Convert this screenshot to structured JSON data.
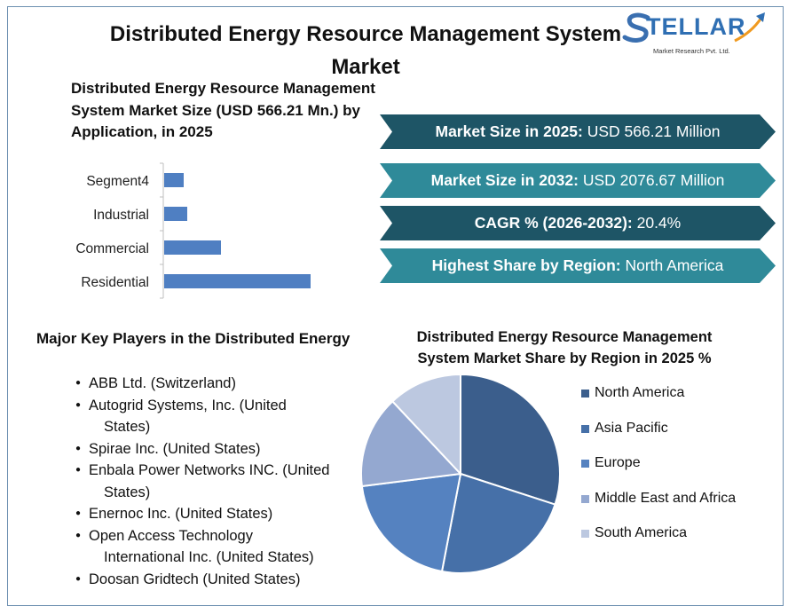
{
  "title": "Distributed Energy Resource Management System Market",
  "logo": {
    "name": "STELLAR",
    "tagline": "Market Research Pvt. Ltd."
  },
  "bar_chart_title": "Distributed Energy Resource Management System Market Size (USD 566.21 Mn.) by Application, in 2025",
  "metrics": [
    {
      "label": "Market Size in 2025:",
      "value": "USD 566.21 Million",
      "color": "#1e5566"
    },
    {
      "label": "Market Size in 2032:",
      "value": "USD 2076.67 Million",
      "color": "#2f8a99"
    },
    {
      "label": "CAGR % (2026-2032):",
      "value": "20.4%",
      "color": "#1e5566"
    },
    {
      "label": "Highest Share by Region:",
      "value": "North America",
      "color": "#2f8a99"
    }
  ],
  "players_title": "Major Key Players in the Distributed Energy",
  "players": [
    [
      "ABB Ltd. (Switzerland)"
    ],
    [
      "Autogrid Systems, Inc. (United",
      "States)"
    ],
    [
      "Spirae Inc. (United States)"
    ],
    [
      "Enbala Power Networks INC. (United",
      "States)"
    ],
    [
      "Enernoc Inc. (United States)"
    ],
    [
      "Open Access Technology",
      "International Inc. (United States)"
    ],
    [
      "Doosan Gridtech (United States)"
    ]
  ],
  "pie_chart_title": "Distributed Energy Resource Management System Market Share by Region in 2025 %",
  "chart_data": [
    {
      "type": "bar",
      "orientation": "horizontal",
      "categories": [
        "Segment4",
        "Industrial",
        "Commercial",
        "Residential"
      ],
      "values": [
        22,
        26,
        64,
        165
      ],
      "color": "#4f7fc2",
      "title": "Distributed Energy Resource Management System Market Size (USD 566.21 Mn.) by Application, in 2025",
      "xlabel": "",
      "ylabel": "",
      "xlim": [
        0,
        200
      ],
      "grid": false
    },
    {
      "type": "pie",
      "categories": [
        "North America",
        "Asia Pacific",
        "Europe",
        "Middle East and Africa",
        "South America"
      ],
      "values": [
        30,
        23,
        20,
        15,
        12
      ],
      "colors": [
        "#3b5e8c",
        "#4670a8",
        "#5582c0",
        "#94a8d0",
        "#bcc8e0"
      ],
      "title": "Distributed Energy Resource Management System Market Share by Region in 2025 %",
      "legend": "right"
    }
  ]
}
